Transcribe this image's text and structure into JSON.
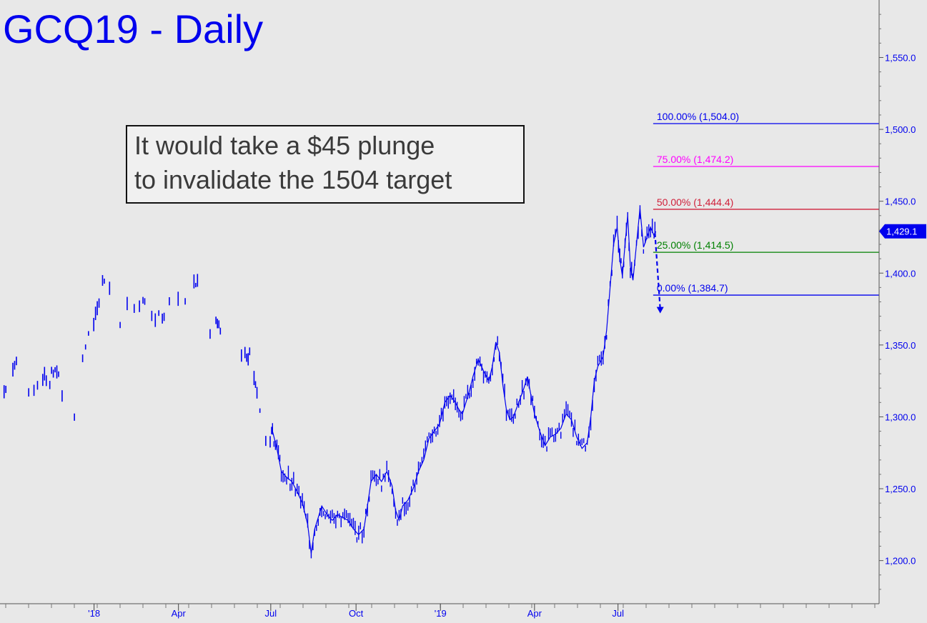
{
  "chart_data": {
    "type": "line",
    "title": "GCQ19 - Daily",
    "subtitle": "",
    "xlabel": "",
    "ylabel": "",
    "ylim": [
      1170,
      1590
    ],
    "y_ticks": [
      1200,
      1250,
      1300,
      1350,
      1400,
      1450,
      1500,
      1550
    ],
    "y_tick_labels": [
      "1,200.0",
      "1,250.0",
      "1,300.0",
      "1,350.0",
      "1,400.0",
      "1,450.0",
      "1,500.0",
      "1,550.0"
    ],
    "x_tick_labels": [
      "'18",
      "Apr",
      "Jul",
      "Oct",
      "'19",
      "Apr",
      "Jul"
    ],
    "x_tick_positions": [
      0.107,
      0.203,
      0.308,
      0.405,
      0.501,
      0.608,
      0.703
    ],
    "grid": false,
    "last_price": 1429.1,
    "last_price_label": "1,429.1",
    "colors": {
      "series": "#0000ee",
      "background": "#e8e8e8"
    },
    "series": [
      {
        "name": "",
        "points": [
          [
            0.0,
            1325
          ],
          [
            0.006,
            1320
          ],
          [
            0.012,
            1335
          ],
          [
            0.018,
            1342
          ],
          [
            0.022,
            1330
          ],
          [
            0.026,
            1322
          ],
          [
            0.03,
            1315
          ],
          [
            0.036,
            1318
          ],
          [
            0.042,
            1322
          ],
          [
            0.048,
            1328
          ],
          [
            0.054,
            1320
          ],
          [
            0.06,
            1335
          ],
          [
            0.066,
            1330
          ],
          [
            0.07,
            1318
          ],
          [
            0.074,
            1298
          ],
          [
            0.078,
            1290
          ],
          [
            0.082,
            1295
          ],
          [
            0.086,
            1310
          ],
          [
            0.09,
            1325
          ],
          [
            0.095,
            1345
          ],
          [
            0.1,
            1360
          ],
          [
            0.106,
            1368
          ],
          [
            0.112,
            1380
          ],
          [
            0.118,
            1395
          ],
          [
            0.124,
            1390
          ],
          [
            0.128,
            1380
          ],
          [
            0.132,
            1372
          ],
          [
            0.136,
            1365
          ],
          [
            0.142,
            1382
          ],
          [
            0.148,
            1375
          ],
          [
            0.154,
            1372
          ],
          [
            0.16,
            1385
          ],
          [
            0.166,
            1378
          ],
          [
            0.172,
            1368
          ],
          [
            0.178,
            1372
          ],
          [
            0.184,
            1370
          ],
          [
            0.19,
            1380
          ],
          [
            0.196,
            1392
          ],
          [
            0.2,
            1388
          ],
          [
            0.206,
            1375
          ],
          [
            0.212,
            1382
          ],
          [
            0.218,
            1390
          ],
          [
            0.222,
            1395
          ],
          [
            0.226,
            1385
          ],
          [
            0.23,
            1372
          ],
          [
            0.235,
            1362
          ],
          [
            0.24,
            1355
          ],
          [
            0.245,
            1368
          ],
          [
            0.25,
            1360
          ],
          [
            0.256,
            1345
          ],
          [
            0.262,
            1340
          ],
          [
            0.268,
            1342
          ],
          [
            0.274,
            1338
          ],
          [
            0.28,
            1342
          ],
          [
            0.285,
            1346
          ],
          [
            0.29,
            1325
          ],
          [
            0.295,
            1308
          ],
          [
            0.3,
            1290
          ],
          [
            0.305,
            1278
          ],
          [
            0.31,
            1290
          ],
          [
            0.315,
            1278
          ],
          [
            0.32,
            1262
          ],
          [
            0.326,
            1258
          ],
          [
            0.332,
            1255
          ],
          [
            0.338,
            1248
          ],
          [
            0.344,
            1240
          ],
          [
            0.35,
            1225
          ],
          [
            0.354,
            1205
          ],
          [
            0.358,
            1222
          ],
          [
            0.362,
            1230
          ],
          [
            0.366,
            1238
          ],
          [
            0.372,
            1232
          ],
          [
            0.378,
            1228
          ],
          [
            0.384,
            1232
          ],
          [
            0.39,
            1230
          ],
          [
            0.396,
            1228
          ],
          [
            0.402,
            1222
          ],
          [
            0.408,
            1218
          ],
          [
            0.414,
            1222
          ],
          [
            0.418,
            1238
          ],
          [
            0.422,
            1255
          ],
          [
            0.428,
            1260
          ],
          [
            0.434,
            1255
          ],
          [
            0.44,
            1262
          ],
          [
            0.446,
            1252
          ],
          [
            0.45,
            1235
          ],
          [
            0.454,
            1228
          ],
          [
            0.458,
            1238
          ],
          [
            0.464,
            1242
          ],
          [
            0.47,
            1250
          ],
          [
            0.476,
            1262
          ],
          [
            0.482,
            1270
          ],
          [
            0.488,
            1285
          ],
          [
            0.494,
            1290
          ],
          [
            0.5,
            1295
          ],
          [
            0.506,
            1310
          ],
          [
            0.512,
            1315
          ],
          [
            0.518,
            1310
          ],
          [
            0.522,
            1305
          ],
          [
            0.526,
            1302
          ],
          [
            0.53,
            1310
          ],
          [
            0.534,
            1318
          ],
          [
            0.538,
            1328
          ],
          [
            0.544,
            1340
          ],
          [
            0.55,
            1332
          ],
          [
            0.556,
            1325
          ],
          [
            0.56,
            1335
          ],
          [
            0.564,
            1352
          ],
          [
            0.568,
            1345
          ],
          [
            0.572,
            1322
          ],
          [
            0.576,
            1305
          ],
          [
            0.58,
            1298
          ],
          [
            0.584,
            1300
          ],
          [
            0.59,
            1310
          ],
          [
            0.596,
            1320
          ],
          [
            0.6,
            1328
          ],
          [
            0.604,
            1315
          ],
          [
            0.608,
            1302
          ],
          [
            0.614,
            1290
          ],
          [
            0.62,
            1280
          ],
          [
            0.626,
            1286
          ],
          [
            0.632,
            1288
          ],
          [
            0.638,
            1292
          ],
          [
            0.644,
            1302
          ],
          [
            0.65,
            1298
          ],
          [
            0.656,
            1286
          ],
          [
            0.662,
            1278
          ],
          [
            0.668,
            1282
          ],
          [
            0.672,
            1300
          ],
          [
            0.676,
            1325
          ],
          [
            0.68,
            1335
          ],
          [
            0.686,
            1342
          ],
          [
            0.69,
            1360
          ],
          [
            0.694,
            1390
          ],
          [
            0.698,
            1420
          ],
          [
            0.702,
            1432
          ],
          [
            0.705,
            1410
          ],
          [
            0.708,
            1398
          ],
          [
            0.711,
            1420
          ],
          [
            0.714,
            1440
          ],
          [
            0.717,
            1405
          ],
          [
            0.72,
            1395
          ],
          [
            0.724,
            1420
          ],
          [
            0.728,
            1445
          ],
          [
            0.732,
            1418
          ],
          [
            0.736,
            1425
          ],
          [
            0.74,
            1432
          ],
          [
            0.744,
            1426
          ],
          [
            0.746,
            1429
          ]
        ]
      }
    ],
    "fib_levels": [
      {
        "pct": "100.00%",
        "value": 1504.0,
        "label": "100.00% (1,504.0)",
        "color": "#0000ee"
      },
      {
        "pct": "75.00%",
        "value": 1474.2,
        "label": "75.00% (1,474.2)",
        "color": "#ff00ff"
      },
      {
        "pct": "50.00%",
        "value": 1444.4,
        "label": "50.00% (1,444.4)",
        "color": "#d0203a"
      },
      {
        "pct": "25.00%",
        "value": 1414.5,
        "label": "25.00% (1,414.5)",
        "color": "#008000"
      },
      {
        "pct": "0.00%",
        "value": 1384.7,
        "label": "0.00% (1,384.7)",
        "color": "#0000ee"
      }
    ],
    "projection": {
      "from": [
        0.745,
        1428
      ],
      "to": [
        0.751,
        1372
      ]
    },
    "annotation": {
      "line1": "It would take a $45 plunge",
      "line2": "to invalidate the 1504 target"
    }
  }
}
